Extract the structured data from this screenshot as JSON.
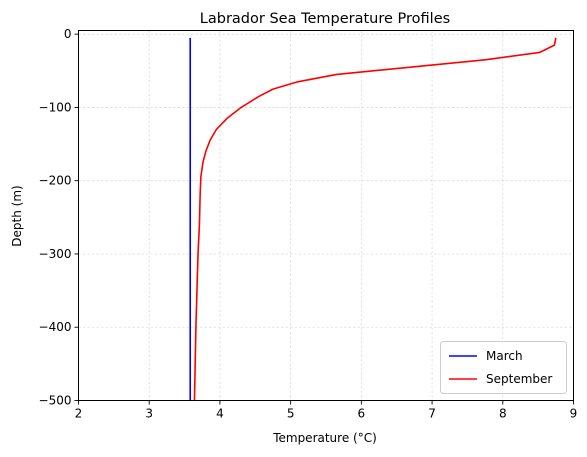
{
  "chart_data": {
    "type": "line",
    "title": "Labrador Sea Temperature Profiles",
    "xlabel": "Temperature (°C)",
    "ylabel": "Depth (m)",
    "xlim": [
      2,
      9
    ],
    "ylim": [
      -500,
      5
    ],
    "xticks": [
      2,
      3,
      4,
      5,
      6,
      7,
      8,
      9
    ],
    "yticks": [
      0,
      -100,
      -200,
      -300,
      -400,
      -500
    ],
    "xtick_labels": [
      "2",
      "3",
      "4",
      "5",
      "6",
      "7",
      "8",
      "9"
    ],
    "ytick_labels": [
      "0",
      "−100",
      "−200",
      "−300",
      "−400",
      "−500"
    ],
    "grid": true,
    "legend_position": "lower-right",
    "series": [
      {
        "name": "March",
        "color": "#0000ff",
        "x": [
          3.58,
          3.58,
          3.58,
          3.58,
          3.58,
          3.58,
          3.58
        ],
        "y": [
          -5,
          -50,
          -100,
          -200,
          -300,
          -400,
          -500
        ]
      },
      {
        "name": "September",
        "color": "#ff0000",
        "x": [
          8.75,
          8.73,
          8.52,
          7.75,
          5.65,
          5.1,
          4.75,
          4.55,
          4.3,
          4.1,
          3.95,
          3.86,
          3.8,
          3.76,
          3.73,
          3.72,
          3.71,
          3.69,
          3.66,
          3.64
        ],
        "y": [
          -5,
          -15,
          -25,
          -35,
          -55,
          -65,
          -75,
          -85,
          -100,
          -115,
          -130,
          -145,
          -160,
          -175,
          -195,
          -220,
          -260,
          -300,
          -400,
          -500
        ]
      }
    ]
  }
}
